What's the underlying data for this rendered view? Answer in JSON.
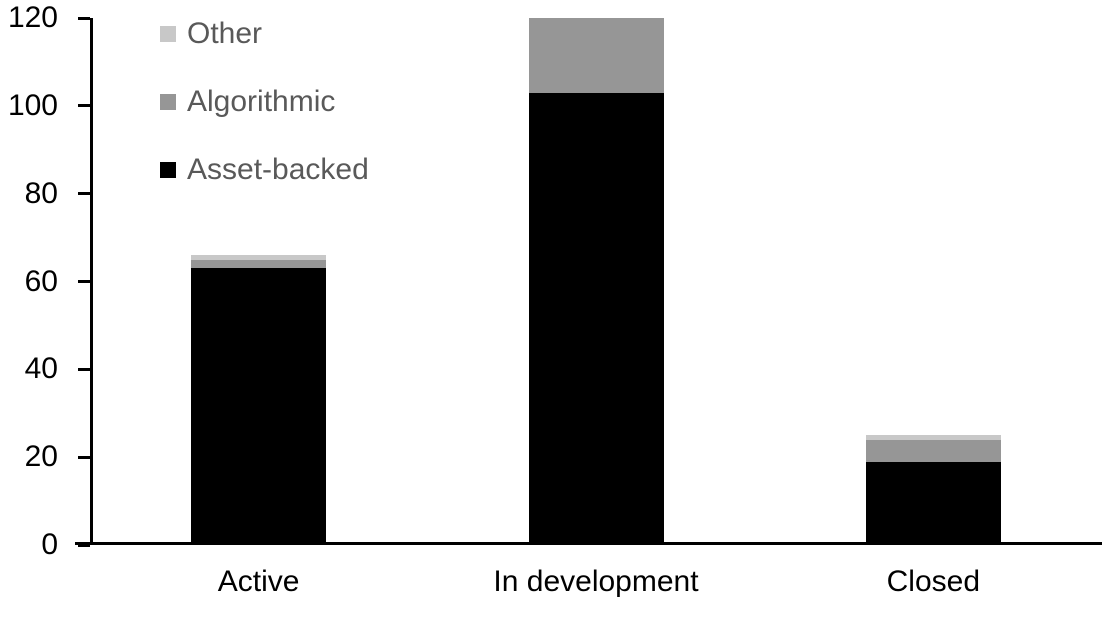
{
  "chart_data": {
    "type": "bar",
    "stacked": true,
    "title": "",
    "xlabel": "",
    "ylabel": "",
    "background_color": "#ffffff",
    "axis_color": "#000000",
    "grid": false,
    "categories": [
      "Active",
      "In development",
      "Closed"
    ],
    "series": [
      {
        "name": "Asset-backed",
        "color": "#000000",
        "values": [
          63,
          103,
          19
        ]
      },
      {
        "name": "Algorithmic",
        "color": "#969696",
        "values": [
          2,
          17,
          5
        ]
      },
      {
        "name": "Other",
        "color": "#c8c8c8",
        "values": [
          1,
          0,
          1
        ]
      }
    ],
    "totals": [
      66,
      120,
      25
    ],
    "y_axis": {
      "min": 0,
      "max": 120,
      "tick_step": 20,
      "ticks": [
        0,
        20,
        40,
        60,
        80,
        100,
        120
      ]
    },
    "legend": {
      "position": "top-left",
      "orientation": "vertical",
      "text_color": "#595959",
      "items": [
        "Other",
        "Algorithmic",
        "Asset-backed"
      ]
    }
  }
}
